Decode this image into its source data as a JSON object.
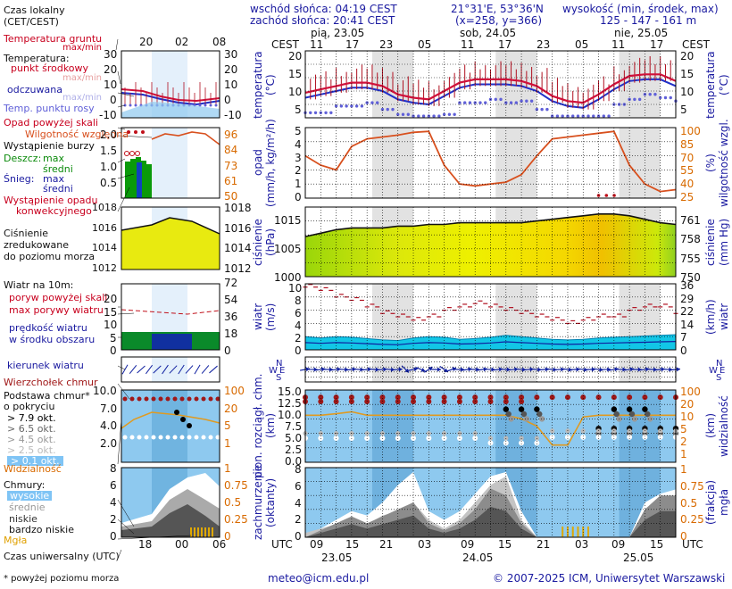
{
  "header": {
    "sunrise": "wschód słońca: 04:19 CEST",
    "sunset": "zachód słońca: 20:41 CEST",
    "coords": "21°31'E, 53°36'N",
    "grid": "(x=258, y=366)",
    "elev_title": "wysokość (min, środek, max)",
    "elev_values": "125 - 147 - 161 m",
    "tz_left": "CEST",
    "tz_right": "CEST",
    "utc_left": "UTC",
    "utc_right": "UTC"
  },
  "days_top": [
    "pią, 23.05",
    "sob, 24.05",
    "nie, 25.05"
  ],
  "days_bottom": [
    "23.05",
    "24.05",
    "25.05"
  ],
  "hours_top": [
    "11",
    "17",
    "23",
    "05",
    "11",
    "17",
    "23",
    "05",
    "11",
    "17"
  ],
  "hours_bottom": [
    "09",
    "15",
    "21",
    "03",
    "09",
    "15",
    "21",
    "03",
    "09",
    "15"
  ],
  "legend": {
    "title1": "Czas lokalny",
    "title2": "(CET/CEST)",
    "legend_hours_top": [
      "20",
      "02",
      "08"
    ],
    "legend_hours_bottom": [
      "18",
      "00",
      "06"
    ],
    "soil": "Temperatura gruntu",
    "maxmin": "max/min",
    "temp": "Temperatura:",
    "temp_mid": "punkt środkowy",
    "temp_maxmin": "max/min",
    "felt": "odczuwana",
    "felt_maxmin": "max/min",
    "dew": "Temp. punktu rosy",
    "rain_over": "Opad powyżej skali",
    "humidity": "Wilgotność względna",
    "storm": "Wystąpienie burzy",
    "rain": "Deszcz:",
    "rain_max": "max",
    "rain_mean": "średni",
    "snow": "Śnieg:",
    "snow_max": "max",
    "snow_mean": "średni",
    "conv1": "Wystąpienie opadu",
    "conv2": "konwekcyjnego",
    "press1": "Ciśnienie",
    "press2": "zredukowane",
    "press3": "do poziomu morza",
    "wind_title": "Wiatr na 10m:",
    "gust_over": "poryw powyżej skali",
    "gust_max": "max porywy wiatru",
    "wind_mean1": "prędkość wiatru",
    "wind_mean2": "w środku obszaru",
    "wind_dir": "kierunek wiatru",
    "cloud_top": "Wierzchołek chmur",
    "cloud_base1": "Podstawa chmur*",
    "cloud_base2": "o pokryciu",
    "okt": [
      "> 7.9 okt.",
      "> 6.5 okt.",
      "> 4.5 okt.",
      "> 2.5 okt.",
      "> 0.1 okt."
    ],
    "visibility": "Widzialność",
    "clouds": "Chmury:",
    "high": "wysokie",
    "mid": "średnie",
    "low": "niskie",
    "vlow": "bardzo niskie",
    "fog": "Mgła",
    "utc_time": "Czas uniwersalny (UTC)",
    "footnote": "* powyżej poziomu morza"
  },
  "axis_labels": {
    "temp_l": "temperatura",
    "temp_l2": "(°C)",
    "temp_r": "temperatura",
    "temp_r2": "(°C)",
    "rain_l": "opad",
    "rain_l2": "(mm/h, kg/m²/h)",
    "rain_r": "(%)",
    "rain_r2": "wilgotność wzgl.",
    "press_l": "ciśnienie",
    "press_l2": "(hPa)",
    "press_r": "ciśnienie",
    "press_r2": "(mm Hg)",
    "wind_l": "wiatr",
    "wind_l2": "(m/s)",
    "wind_r": "(km/h)",
    "wind_r2": "wiatr",
    "cloud_l": "pion. rozciągł. chm.",
    "cloud_l2": "(km)",
    "cloud_r": "(km)",
    "cloud_r2": "widzialność",
    "cov_l": "zachmurzenie",
    "cov_l2": "(oktanty)",
    "cov_r": "(frakcja)",
    "cov_r2": "mgła"
  },
  "ticks": {
    "temp_l": [
      "20",
      "15",
      "10",
      "5"
    ],
    "temp_r": [
      "20",
      "15",
      "10",
      "5"
    ],
    "rain_l": [
      "5",
      "4",
      "3",
      "2",
      "1",
      "0"
    ],
    "rain_r": [
      "100",
      "85",
      "70",
      "55",
      "40",
      "25"
    ],
    "press_l": [
      "1015",
      "1005",
      "1000"
    ],
    "press_r": [
      "761",
      "758",
      "755",
      "750"
    ],
    "wind_l": [
      "10",
      "8",
      "6",
      "4",
      "2",
      "0"
    ],
    "wind_r": [
      "36",
      "29",
      "22",
      "14",
      "7",
      "0"
    ],
    "cloud_l": [
      "15.0",
      "12.5",
      "10.0",
      "7.5",
      "5.0",
      "2.5",
      "0.0"
    ],
    "cloud_r": [
      "100",
      "20",
      "10",
      "5",
      "2",
      "1"
    ],
    "cov_l": [
      "8",
      "6",
      "4",
      "2",
      "0"
    ],
    "cov_r": [
      "1",
      "0.75",
      "0.5",
      "0.25",
      "0"
    ],
    "leg_temp_l": [
      "30",
      "20",
      "10",
      "0",
      "-10"
    ],
    "leg_temp_r": [
      "30",
      "20",
      "10",
      "0",
      "-10"
    ],
    "leg_rain_l": [
      "2.0",
      "1.5",
      "1.0",
      "0.5"
    ],
    "leg_rain_r": [
      "96",
      "84",
      "73",
      "61",
      "50"
    ],
    "leg_press_l": [
      "1018",
      "1016",
      "1014",
      "1012"
    ],
    "leg_press_r": [
      "1018",
      "1016",
      "1014",
      "1012"
    ],
    "leg_wind_l": [
      "20",
      "15",
      "10",
      "5",
      "0"
    ],
    "leg_wind_r": [
      "72",
      "54",
      "36",
      "18",
      "0"
    ],
    "leg_cloud_l": [
      "10.0",
      "7.0",
      "4.0",
      "2.0"
    ],
    "leg_cloud_r": [
      "100",
      "20",
      "5",
      "1"
    ],
    "leg_cov_l": [
      "8",
      "6",
      "4",
      "2",
      "0"
    ],
    "leg_cov_r": [
      "1",
      "0.75",
      "0.5",
      "0.25",
      "0"
    ]
  },
  "chart_data": {
    "type": "line",
    "x_hours_utc": [
      0,
      3,
      6,
      9,
      12,
      15,
      18,
      21,
      24,
      27,
      30,
      33,
      36,
      39,
      42,
      45,
      48,
      51,
      54,
      57,
      60,
      63,
      66,
      69,
      72
    ],
    "x_label": "UTC",
    "start": "23.05 06 UTC",
    "series": [
      {
        "name": "temperatura",
        "unit": "°C",
        "values": [
          10.5,
          11.5,
          12.5,
          13.5,
          13.5,
          12.5,
          10,
          9,
          8.5,
          11,
          13.5,
          14.5,
          14.5,
          14.5,
          14,
          12.5,
          9.5,
          8,
          7.5,
          10,
          13,
          15.5,
          16,
          16,
          14
        ]
      },
      {
        "name": "wilgotność względna",
        "unit": "%",
        "values": [
          70,
          60,
          55,
          80,
          88,
          90,
          92,
          95,
          96,
          60,
          40,
          38,
          40,
          42,
          50,
          70,
          88,
          90,
          92,
          94,
          96,
          60,
          40,
          32,
          34
        ]
      },
      {
        "name": "ciśnienie",
        "unit": "hPa",
        "values": [
          1011.5,
          1012.5,
          1013.5,
          1014,
          1014,
          1014,
          1014.5,
          1014.5,
          1015,
          1015,
          1015.5,
          1015.5,
          1015.5,
          1015.5,
          1015.5,
          1016,
          1016.5,
          1017,
          1017.5,
          1018,
          1018,
          1017.5,
          1016.5,
          1015.5,
          1015
        ]
      },
      {
        "name": "prędkość wiatru",
        "unit": "m/s",
        "values": [
          2,
          1.8,
          2,
          1.9,
          1.7,
          1.5,
          1.4,
          1.8,
          2,
          1.9,
          1.6,
          1.7,
          1.9,
          2.2,
          2,
          1.8,
          1.6,
          1.5,
          1.6,
          1.8,
          1.9,
          2,
          2.1,
          2.2,
          2.3
        ]
      },
      {
        "name": "max porywy wiatru",
        "unit": "m/s",
        "values": [
          9.5,
          9,
          8,
          7.5,
          6.5,
          5.5,
          5,
          4.5,
          5,
          6,
          6.5,
          7,
          6.5,
          6,
          5.5,
          5,
          4.5,
          4,
          4.5,
          5,
          5,
          6,
          6.5,
          6.5,
          5.5
        ]
      },
      {
        "name": "widzialność",
        "unit": "km",
        "values": [
          20,
          20,
          22,
          25,
          20,
          20,
          20,
          20,
          20,
          20,
          20,
          20,
          20,
          20,
          16,
          10,
          3,
          3,
          18,
          20,
          20,
          20,
          20,
          20,
          20
        ]
      }
    ],
    "ylim_temp": [
      3,
      22
    ],
    "ylim_press": [
      1000,
      1020
    ],
    "ylim_wind": [
      0,
      10
    ]
  }
}
